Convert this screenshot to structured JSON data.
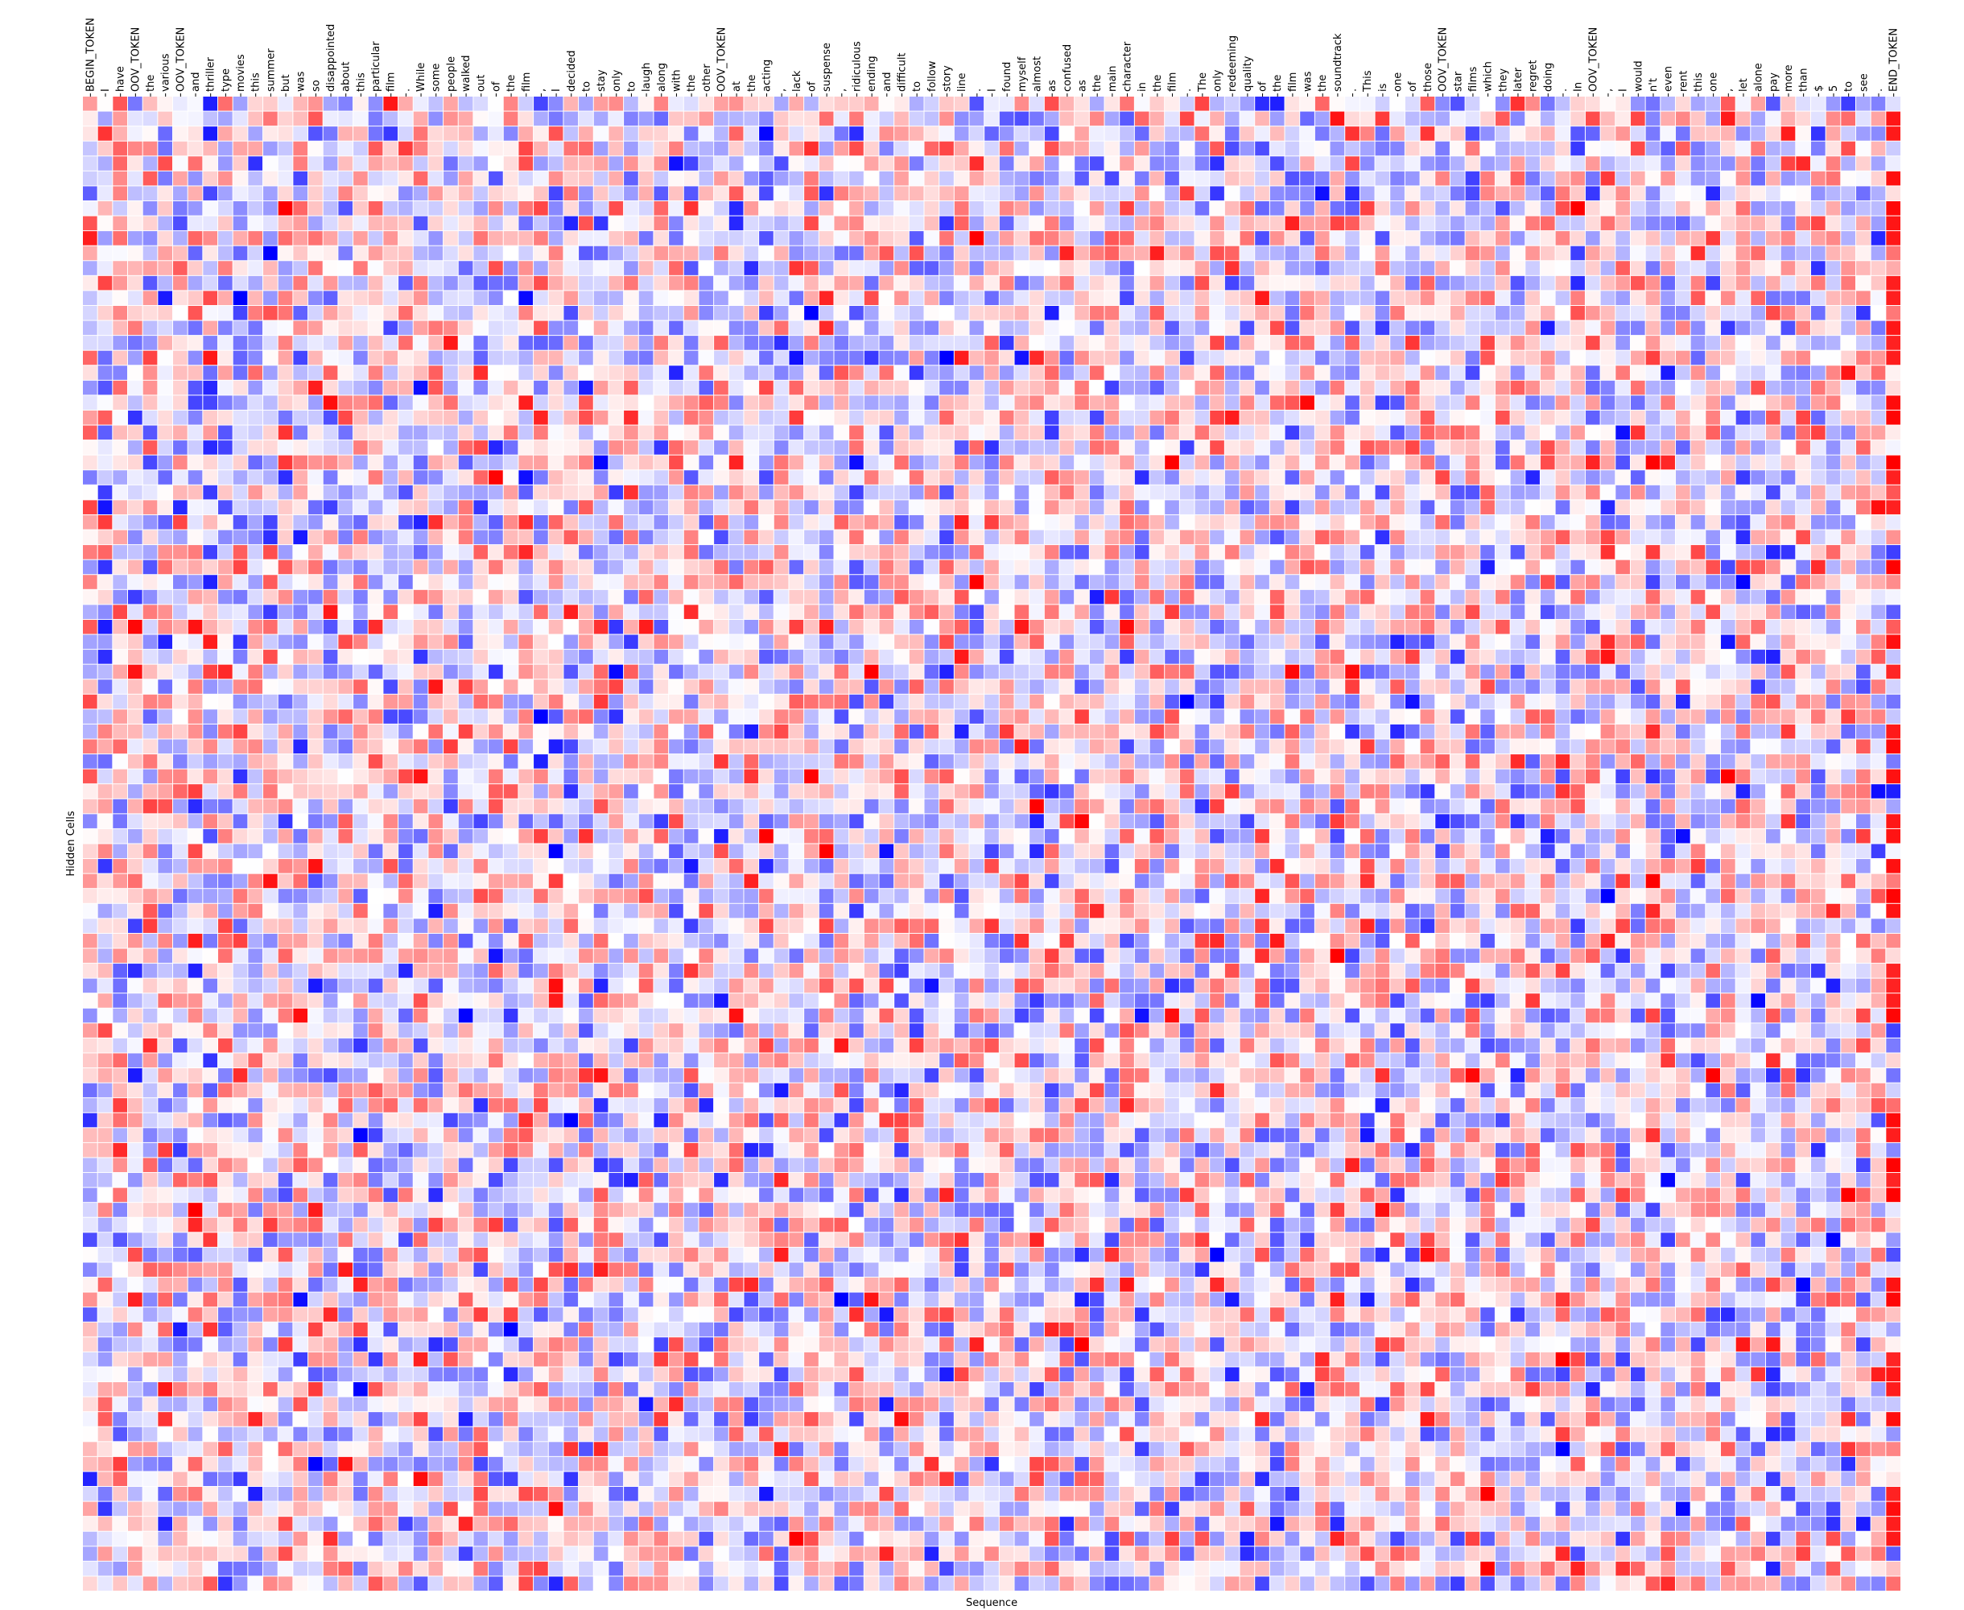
{
  "chart_data": {
    "type": "heatmap",
    "title": "",
    "xlabel": "Sequence",
    "ylabel": "Hidden Cells",
    "x_tick_labels": [
      "BEGIN_TOKEN",
      "I",
      "have",
      "OOV_TOKEN",
      "the",
      "various",
      "OOV_TOKEN",
      "and",
      "thriller",
      "type",
      "movies",
      "this",
      "summer",
      "but",
      "was",
      "so",
      "disappointed",
      "about",
      "this",
      "particular",
      "film",
      ".",
      "While",
      "some",
      "people",
      "walked",
      "out",
      "of",
      "the",
      "film",
      ",",
      "I",
      "decided",
      "to",
      "stay",
      "only",
      "to",
      "laugh",
      "along",
      "with",
      "the",
      "other",
      "OOV_TOKEN",
      "at",
      "the",
      "acting",
      ",",
      "lack",
      "of",
      "suspense",
      ",",
      "ridiculous",
      "ending",
      "and",
      "difficult",
      "to",
      "follow",
      "story",
      "line",
      ".",
      "I",
      "found",
      "myself",
      "almost",
      "as",
      "confused",
      "as",
      "the",
      "main",
      "character",
      "in",
      "the",
      "film",
      ".",
      "The",
      "only",
      "redeeming",
      "quality",
      "of",
      "the",
      "film",
      "was",
      "the",
      "soundtrack",
      ".",
      "This",
      "is",
      "one",
      "of",
      "those",
      "OOV_TOKEN",
      "star",
      "films",
      "which",
      "they",
      "later",
      "regret",
      "doing",
      ".",
      "In",
      "OOV_TOKEN",
      ",",
      "I",
      "would",
      "n't",
      "even",
      "rent",
      "this",
      "one",
      ",",
      "let",
      "alone",
      "pay",
      "more",
      "than",
      "$",
      "5",
      "to",
      "see",
      ".",
      "END_TOKEN"
    ],
    "y_tick_labels": [],
    "n_rows": 100,
    "value_range": [
      -1,
      1
    ],
    "colormap": "bwr",
    "colormap_colors": {
      "low": "#0000ff",
      "mid": "#ffffff",
      "high": "#ff0000"
    },
    "cell_gap_color": "#ffffff",
    "grid": false,
    "legend": "none"
  }
}
